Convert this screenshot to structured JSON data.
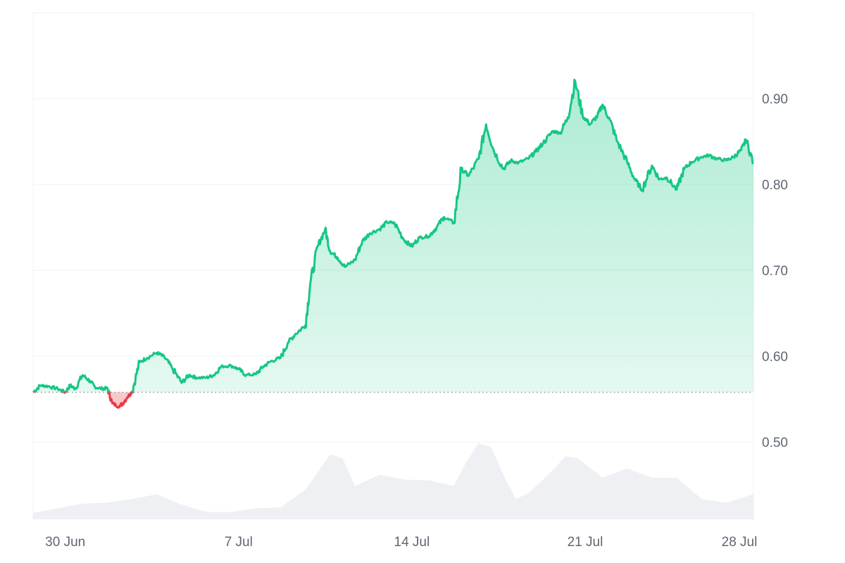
{
  "chart_data": {
    "type": "area",
    "title": "",
    "xlabel": "",
    "ylabel": "",
    "x_ticks": [
      "30 Jun",
      "7 Jul",
      "14 Jul",
      "21 Jul",
      "28 Jul"
    ],
    "y_ticks": [
      "0.50",
      "0.60",
      "0.70",
      "0.80",
      "0.90"
    ],
    "ylim": [
      0.41,
      1.0
    ],
    "x_range_days": [
      0,
      29.1
    ],
    "baseline": 0.558,
    "grid": true,
    "y_axis_side": "right",
    "colors": {
      "up": "#16c784",
      "down": "#ea3943",
      "grid": "#eff1f4",
      "baseline": "#888888",
      "volume": "#eef0f3",
      "tick_text": "#5f6672"
    },
    "series": [
      {
        "values_x_days": [
          0,
          0.3,
          0.6,
          1.0,
          1.3,
          1.5,
          1.7,
          2.0,
          2.3,
          2.5,
          2.8,
          3.0,
          3.2,
          3.5,
          3.8,
          4.0,
          4.3,
          4.6,
          5.0,
          5.3,
          5.6,
          6.0,
          6.3,
          6.6,
          7.0,
          7.3,
          7.6,
          8.0,
          8.3,
          8.6,
          9.0,
          9.3,
          9.6,
          10.0,
          10.3,
          10.6,
          11.0,
          11.2,
          11.5,
          11.8,
          12.0,
          12.3,
          12.6,
          13.0,
          13.3,
          13.6,
          14.0,
          14.3,
          14.6,
          15.0,
          15.3,
          15.6,
          16.0,
          16.3,
          16.6,
          17.0,
          17.3,
          17.6,
          18.0,
          18.3,
          18.6,
          19.0,
          19.3,
          19.6,
          20.0,
          20.3,
          20.6,
          21.0,
          21.3,
          21.6,
          21.9,
          22.2,
          22.5,
          22.8,
          23.0,
          23.3,
          23.6,
          24.0,
          24.3,
          24.6,
          25.0,
          25.3,
          25.6,
          26.0,
          26.3,
          26.6,
          27.0,
          27.3,
          27.6,
          28.0,
          28.3,
          28.6,
          28.8,
          29.1
        ],
        "values": [
          0.558,
          0.566,
          0.565,
          0.562,
          0.558,
          0.566,
          0.562,
          0.578,
          0.571,
          0.564,
          0.562,
          0.563,
          0.545,
          0.541,
          0.552,
          0.559,
          0.593,
          0.598,
          0.604,
          0.599,
          0.587,
          0.569,
          0.578,
          0.575,
          0.575,
          0.578,
          0.588,
          0.589,
          0.585,
          0.578,
          0.579,
          0.588,
          0.594,
          0.598,
          0.616,
          0.626,
          0.636,
          0.685,
          0.728,
          0.748,
          0.722,
          0.715,
          0.704,
          0.712,
          0.734,
          0.743,
          0.748,
          0.756,
          0.755,
          0.735,
          0.728,
          0.738,
          0.74,
          0.75,
          0.762,
          0.755,
          0.818,
          0.81,
          0.83,
          0.87,
          0.84,
          0.818,
          0.828,
          0.825,
          0.83,
          0.838,
          0.848,
          0.862,
          0.86,
          0.878,
          0.92,
          0.88,
          0.87,
          0.88,
          0.893,
          0.875,
          0.85,
          0.826,
          0.806,
          0.794,
          0.822,
          0.806,
          0.808,
          0.794,
          0.818,
          0.826,
          0.832,
          0.834,
          0.83,
          0.828,
          0.832,
          0.84,
          0.852,
          0.825
        ]
      }
    ],
    "volume": {
      "values_x_days": [
        0,
        1.0,
        2.0,
        3.0,
        4.0,
        5.0,
        6.0,
        7.0,
        8.0,
        9.0,
        10.0,
        11.0,
        12.0,
        12.5,
        13.0,
        14.0,
        15.0,
        16.0,
        17.0,
        17.5,
        18.0,
        18.5,
        19.0,
        19.5,
        20.0,
        21.0,
        21.5,
        22.0,
        23.0,
        24.0,
        25.0,
        26.0,
        27.0,
        28.0,
        29.1
      ],
      "values": [
        0.07,
        0.12,
        0.17,
        0.18,
        0.22,
        0.27,
        0.16,
        0.08,
        0.08,
        0.12,
        0.13,
        0.32,
        0.7,
        0.66,
        0.36,
        0.48,
        0.43,
        0.42,
        0.36,
        0.62,
        0.82,
        0.78,
        0.48,
        0.22,
        0.28,
        0.53,
        0.68,
        0.66,
        0.45,
        0.55,
        0.45,
        0.45,
        0.22,
        0.18,
        0.27
      ]
    }
  }
}
